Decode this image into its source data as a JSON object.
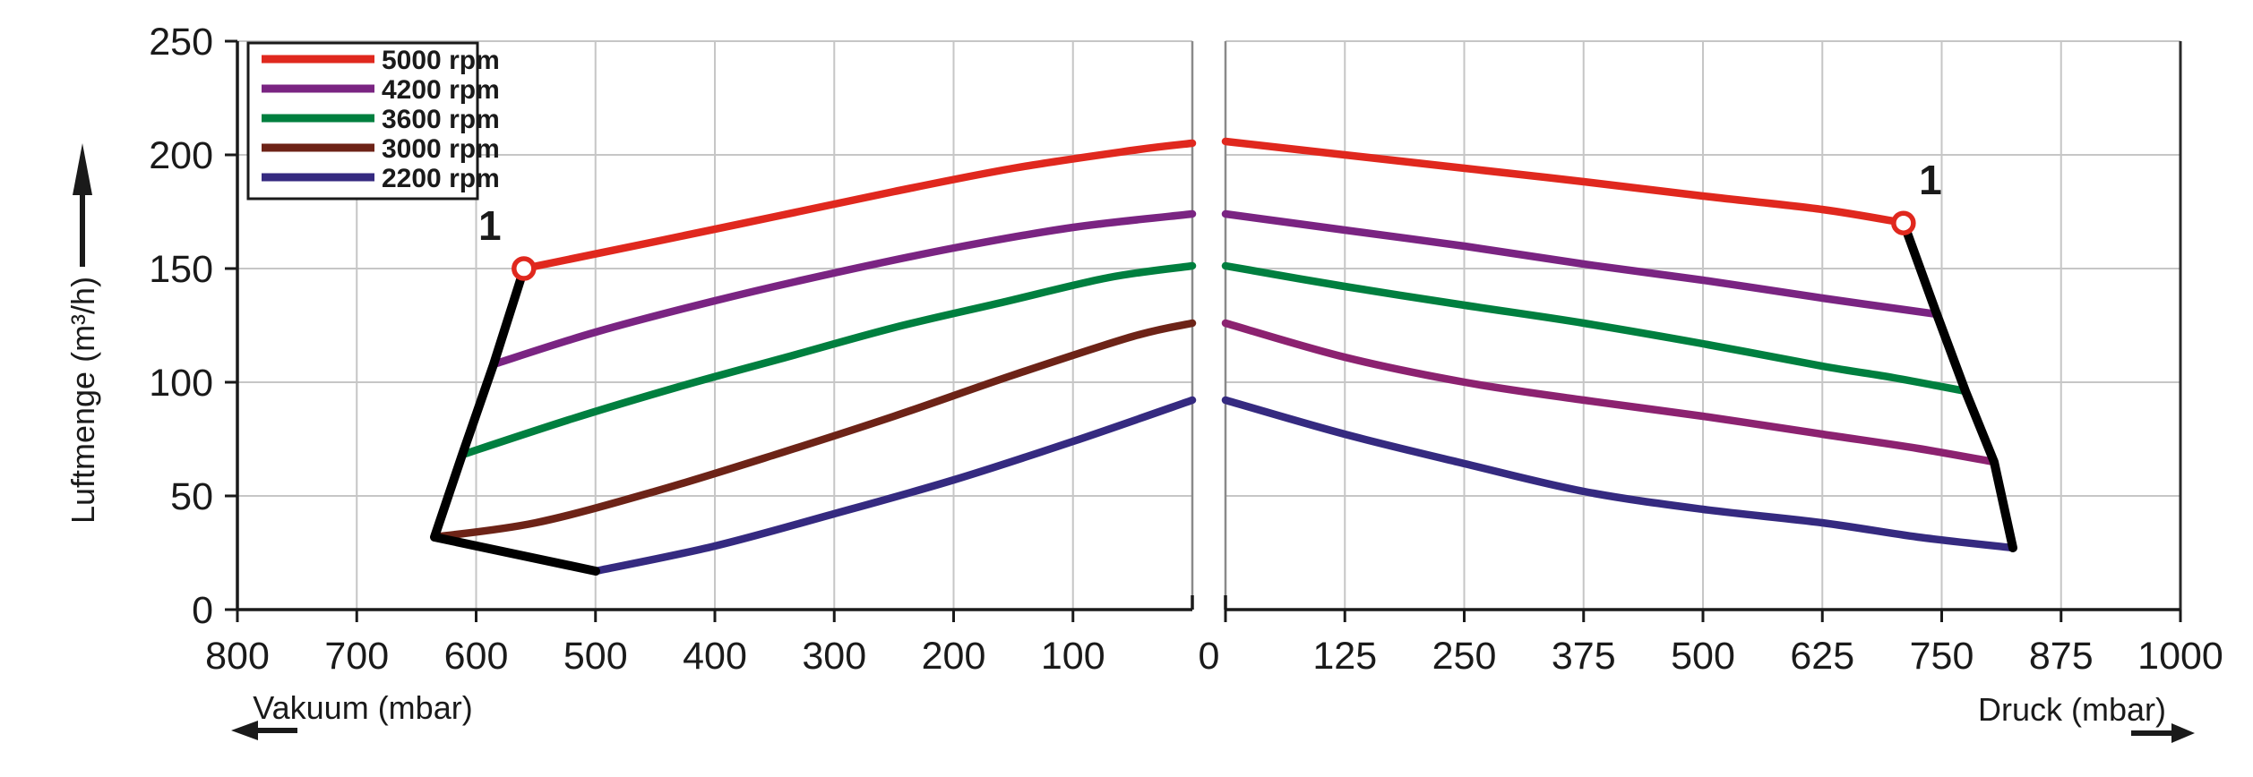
{
  "ylabel": "Luftmenge (m³/h)",
  "colors": {
    "rpm5000": "#e0281e",
    "rpm4200": "#7a2482",
    "rpm3600": "#007f3f",
    "rpm3000_vacuum": "#6d2317",
    "rpm3000_pressure": "#8c2270",
    "rpm2200": "#352a80",
    "envelope": "#000000",
    "axis": "#1a1a1a",
    "grid": "#c6c6c6",
    "panel_edge": "#8a8a8a",
    "marker": "#e0281e"
  },
  "legend": {
    "entries": [
      {
        "label": "5000 rpm",
        "color": "#e0281e"
      },
      {
        "label": "4200 rpm",
        "color": "#7a2482"
      },
      {
        "label": "3600 rpm",
        "color": "#007f3f"
      },
      {
        "label": "3000 rpm",
        "color": "#6d2317"
      },
      {
        "label": "2200 rpm",
        "color": "#352a80"
      }
    ]
  },
  "shared_zero_label": "0",
  "chart_data": [
    {
      "type": "line",
      "panel": "vacuum",
      "xlabel": "Vakuum (mbar)",
      "ylabel": "Luftmenge (m³/h)",
      "xlim": [
        800,
        0
      ],
      "x_reversed": true,
      "x_ticks": [
        800,
        700,
        600,
        500,
        400,
        300,
        200,
        100
      ],
      "ylim": [
        0,
        250
      ],
      "y_ticks": [
        0,
        50,
        100,
        150,
        200,
        250
      ],
      "grid": true,
      "legend_position": "top-left",
      "series": [
        {
          "name": "5000 rpm",
          "color": "#e0281e",
          "points": [
            [
              560,
              150
            ],
            [
              450,
              162
            ],
            [
              350,
              173
            ],
            [
              250,
              184
            ],
            [
              150,
              194
            ],
            [
              50,
              202
            ],
            [
              0,
              205
            ]
          ]
        },
        {
          "name": "4200 rpm",
          "color": "#7a2482",
          "points": [
            [
              585,
              108
            ],
            [
              500,
              122
            ],
            [
              400,
              136
            ],
            [
              300,
              148
            ],
            [
              200,
              159
            ],
            [
              100,
              168
            ],
            [
              0,
              174
            ]
          ]
        },
        {
          "name": "3600 rpm",
          "color": "#007f3f",
          "points": [
            [
              612,
              68
            ],
            [
              520,
              84
            ],
            [
              430,
              98
            ],
            [
              340,
              111
            ],
            [
              250,
              124
            ],
            [
              160,
              135
            ],
            [
              70,
              146
            ],
            [
              0,
              151
            ]
          ]
        },
        {
          "name": "3000 rpm",
          "color": "#6d2317",
          "points": [
            [
              635,
              32
            ],
            [
              550,
              38
            ],
            [
              450,
              52
            ],
            [
              350,
              68
            ],
            [
              250,
              85
            ],
            [
              150,
              103
            ],
            [
              50,
              120
            ],
            [
              0,
              126
            ]
          ]
        },
        {
          "name": "2200 rpm",
          "color": "#352a80",
          "points": [
            [
              500,
              17
            ],
            [
              400,
              28
            ],
            [
              300,
              42
            ],
            [
              200,
              57
            ],
            [
              100,
              74
            ],
            [
              0,
              92
            ]
          ]
        }
      ],
      "envelope": [
        [
          560,
          150
        ],
        [
          585,
          108
        ],
        [
          612,
          68
        ],
        [
          635,
          32
        ],
        [
          500,
          17
        ]
      ],
      "marker": {
        "label": "1",
        "x": 560,
        "y": 150
      }
    },
    {
      "type": "line",
      "panel": "pressure",
      "xlabel": "Druck (mbar)",
      "ylabel": "Luftmenge (m³/h)",
      "xlim": [
        0,
        1000
      ],
      "x_reversed": false,
      "x_ticks": [
        0,
        125,
        250,
        375,
        500,
        625,
        750,
        875,
        1000
      ],
      "ylim": [
        0,
        250
      ],
      "y_ticks": [
        0,
        50,
        100,
        150,
        200,
        250
      ],
      "grid": true,
      "series": [
        {
          "name": "5000 rpm",
          "color": "#e0281e",
          "points": [
            [
              0,
              206
            ],
            [
              125,
              200
            ],
            [
              250,
              194
            ],
            [
              375,
              188
            ],
            [
              500,
              182
            ],
            [
              625,
              176
            ],
            [
              710,
              170
            ]
          ]
        },
        {
          "name": "4200 rpm",
          "color": "#7a2482",
          "points": [
            [
              0,
              174
            ],
            [
              125,
              167
            ],
            [
              250,
              160
            ],
            [
              375,
              152
            ],
            [
              500,
              145
            ],
            [
              625,
              137
            ],
            [
              745,
              130
            ]
          ]
        },
        {
          "name": "3600 rpm",
          "color": "#007f3f",
          "points": [
            [
              0,
              151
            ],
            [
              125,
              142
            ],
            [
              250,
              134
            ],
            [
              375,
              126
            ],
            [
              500,
              117
            ],
            [
              625,
              107
            ],
            [
              700,
              102
            ],
            [
              775,
              96
            ]
          ]
        },
        {
          "name": "3000 rpm",
          "color": "#8c2270",
          "points": [
            [
              0,
              126
            ],
            [
              125,
              111
            ],
            [
              250,
              100
            ],
            [
              375,
              92
            ],
            [
              500,
              85
            ],
            [
              625,
              77
            ],
            [
              725,
              71
            ],
            [
              805,
              65
            ]
          ]
        },
        {
          "name": "2200 rpm",
          "color": "#352a80",
          "points": [
            [
              0,
              92
            ],
            [
              125,
              77
            ],
            [
              250,
              64
            ],
            [
              375,
              52
            ],
            [
              500,
              44
            ],
            [
              625,
              38
            ],
            [
              725,
              32
            ],
            [
              825,
              27
            ]
          ]
        }
      ],
      "envelope": [
        [
          710,
          170
        ],
        [
          745,
          130
        ],
        [
          775,
          96
        ],
        [
          805,
          65
        ],
        [
          825,
          27
        ]
      ],
      "marker": {
        "label": "1",
        "x": 710,
        "y": 170
      }
    }
  ]
}
